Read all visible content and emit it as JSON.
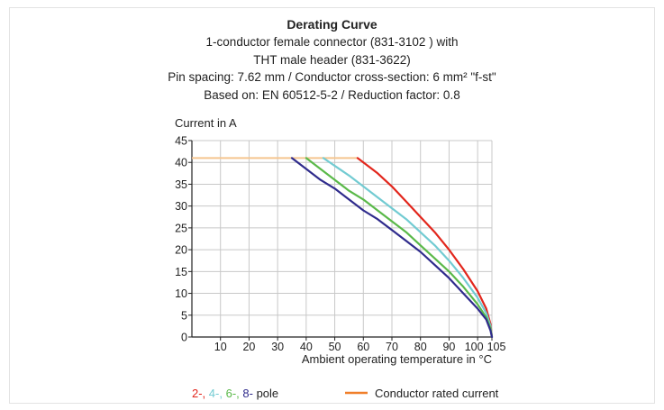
{
  "chart_data": {
    "type": "line",
    "title": "Derating Curve",
    "subtitle_lines": [
      "1-conductor female connector (831-3102 ) with",
      "THT male header (831-3622)",
      "Pin spacing: 7.62 mm / Conductor cross-section: 6 mm² \"f-st\"",
      "Based on: EN 60512-5-2 / Reduction factor: 0.8"
    ],
    "ylabel": "Current in A",
    "xlabel": "Ambient operating temperature in °C",
    "xlim": [
      0,
      105
    ],
    "ylim": [
      0,
      45
    ],
    "xticks": [
      10,
      20,
      30,
      40,
      50,
      60,
      70,
      80,
      90,
      100,
      105
    ],
    "yticks": [
      0,
      5,
      10,
      15,
      20,
      25,
      30,
      35,
      40,
      45
    ],
    "grid": true,
    "rated_current": {
      "name": "Conductor rated current",
      "color": "#f5c58f",
      "legend_color": "#f07f2a",
      "value": 41,
      "x_end": 58
    },
    "series": [
      {
        "pole": "2-",
        "color": "#e2261c",
        "points": [
          [
            58,
            41
          ],
          [
            65,
            37.5
          ],
          [
            70,
            34.5
          ],
          [
            75,
            31
          ],
          [
            80,
            27.5
          ],
          [
            85,
            24
          ],
          [
            90,
            20
          ],
          [
            95,
            15.5
          ],
          [
            100,
            10.5
          ],
          [
            103,
            6.5
          ],
          [
            104.5,
            3
          ],
          [
            105,
            0
          ]
        ]
      },
      {
        "pole": "4-",
        "color": "#72cbd2",
        "points": [
          [
            46,
            41
          ],
          [
            55,
            37
          ],
          [
            60,
            34.5
          ],
          [
            65,
            32
          ],
          [
            70,
            29.5
          ],
          [
            75,
            27
          ],
          [
            80,
            24
          ],
          [
            85,
            21
          ],
          [
            90,
            17.5
          ],
          [
            95,
            13.5
          ],
          [
            100,
            9
          ],
          [
            103,
            5.5
          ],
          [
            104.5,
            2.5
          ],
          [
            105,
            0
          ]
        ]
      },
      {
        "pole": "6-",
        "color": "#5ab949",
        "points": [
          [
            40,
            41
          ],
          [
            45,
            38.5
          ],
          [
            50,
            36
          ],
          [
            55,
            33.5
          ],
          [
            60,
            31.5
          ],
          [
            65,
            29
          ],
          [
            70,
            26.5
          ],
          [
            75,
            24
          ],
          [
            80,
            21
          ],
          [
            85,
            18
          ],
          [
            90,
            15
          ],
          [
            95,
            11.5
          ],
          [
            100,
            7.5
          ],
          [
            103,
            4.5
          ],
          [
            104.5,
            2
          ],
          [
            105,
            0
          ]
        ]
      },
      {
        "pole": "8-",
        "color": "#2f2b8c",
        "points": [
          [
            35,
            41
          ],
          [
            40,
            38.5
          ],
          [
            45,
            36
          ],
          [
            50,
            34
          ],
          [
            55,
            31.5
          ],
          [
            60,
            29
          ],
          [
            65,
            27
          ],
          [
            70,
            24.5
          ],
          [
            75,
            22
          ],
          [
            80,
            19.5
          ],
          [
            85,
            16.5
          ],
          [
            90,
            13.5
          ],
          [
            95,
            10
          ],
          [
            100,
            6.5
          ],
          [
            103,
            4
          ],
          [
            104.5,
            1.5
          ],
          [
            105,
            0
          ]
        ]
      }
    ],
    "legend_poles_suffix": "pole"
  }
}
